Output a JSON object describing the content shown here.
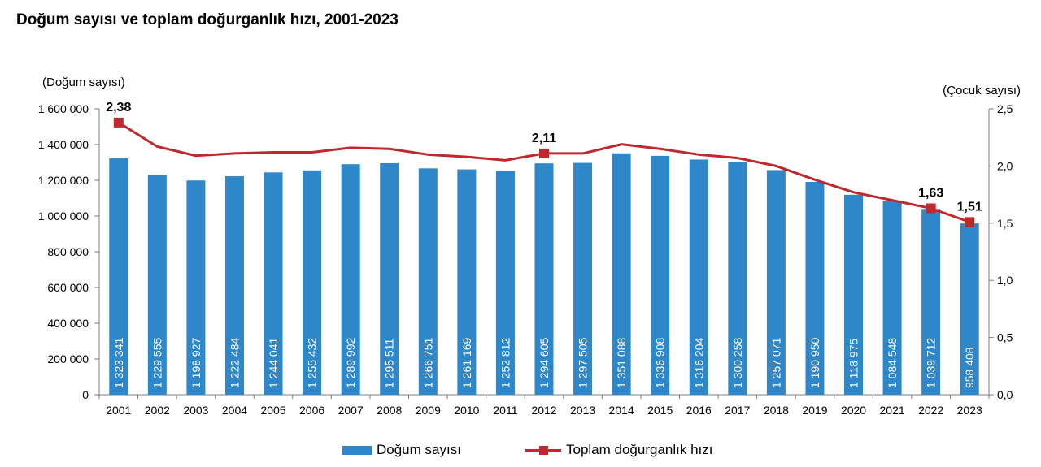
{
  "title": "Doğum sayısı ve toplam doğurganlık hızı, 2001-2023",
  "colors": {
    "bar": "#2e87c8",
    "line": "#c0282d",
    "axis": "#7f7f7f"
  },
  "legend": {
    "bar_label": "Doğum sayısı",
    "line_label": "Toplam doğurganlık hızı"
  },
  "chart_data": {
    "type": "bar",
    "categories": [
      "2001",
      "2002",
      "2003",
      "2004",
      "2005",
      "2006",
      "2007",
      "2008",
      "2009",
      "2010",
      "2011",
      "2012",
      "2013",
      "2014",
      "2015",
      "2016",
      "2017",
      "2018",
      "2019",
      "2020",
      "2021",
      "2022",
      "2023"
    ],
    "series": [
      {
        "name": "Doğum sayısı",
        "type": "bar",
        "axis": "left",
        "values": [
          1323341,
          1229555,
          1198927,
          1222484,
          1244041,
          1255432,
          1289992,
          1295511,
          1266751,
          1261169,
          1252812,
          1294605,
          1297505,
          1351088,
          1336908,
          1316204,
          1300258,
          1257071,
          1190950,
          1118975,
          1084548,
          1039712,
          958408
        ],
        "labels": [
          "1 323 341",
          "1 229 555",
          "1 198 927",
          "1 222 484",
          "1 244 041",
          "1 255 432",
          "1 289 992",
          "1 295 511",
          "1 266 751",
          "1 261 169",
          "1 252 812",
          "1 294 605",
          "1 297 505",
          "1 351 088",
          "1 336 908",
          "1 316 204",
          "1 300 258",
          "1 257 071",
          "1 190 950",
          "1 118 975",
          "1 084 548",
          "1 039 712",
          "958 408"
        ]
      },
      {
        "name": "Toplam doğurganlık hızı",
        "type": "line",
        "axis": "right",
        "values": [
          2.38,
          2.17,
          2.09,
          2.11,
          2.12,
          2.12,
          2.16,
          2.15,
          2.1,
          2.08,
          2.05,
          2.11,
          2.11,
          2.19,
          2.15,
          2.1,
          2.07,
          2.0,
          1.88,
          1.77,
          1.7,
          1.63,
          1.51
        ],
        "labeled_points": [
          {
            "index": 0,
            "label": "2,38"
          },
          {
            "index": 11,
            "label": "2,11"
          },
          {
            "index": 21,
            "label": "1,63"
          },
          {
            "index": 22,
            "label": "1,51"
          }
        ]
      }
    ],
    "y_left": {
      "label": "(Doğum sayısı)",
      "range": [
        0,
        1600000
      ],
      "ticks": [
        0,
        200000,
        400000,
        600000,
        800000,
        1000000,
        1200000,
        1400000,
        1600000
      ],
      "tick_labels": [
        "0",
        "200 000",
        "400 000",
        "600 000",
        "800 000",
        "1 000 000",
        "1 200 000",
        "1 400 000",
        "1 600 000"
      ]
    },
    "y_right": {
      "label": "(Çocuk sayısı)",
      "range": [
        0,
        2.5
      ],
      "ticks": [
        0,
        0.5,
        1.0,
        1.5,
        2.0,
        2.5
      ],
      "tick_labels": [
        "0,0",
        "0,5",
        "1,0",
        "1,5",
        "2,0",
        "2,5"
      ]
    },
    "grid": false,
    "legend_position": "bottom"
  }
}
